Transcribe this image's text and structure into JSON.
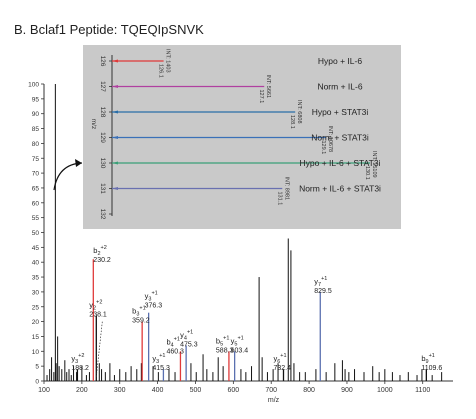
{
  "page_title": "B. Bclaf1 Peptide: TQEQIpSNVK",
  "chart_data": [
    {
      "type": "bar",
      "subtype": "mass-spectrum",
      "x_label": "m/z",
      "xlim": [
        100,
        1180
      ],
      "ylim": [
        0,
        100
      ],
      "x_ticks": [
        100,
        200,
        300,
        400,
        500,
        600,
        700,
        800,
        900,
        1000,
        1100
      ],
      "y_ticks": [
        0,
        5,
        10,
        15,
        20,
        25,
        30,
        35,
        40,
        45,
        50,
        55,
        60,
        65,
        70,
        75,
        80,
        85,
        90,
        95,
        100
      ],
      "colors": {
        "black": "#111111",
        "b_ion": "#e03a3a",
        "y_ion": "#5a70b0"
      },
      "annotated_peaks": [
        {
          "mz": 230.2,
          "intensity": 41,
          "color": "red",
          "ion": "b",
          "sub": "2",
          "sup": "+2",
          "label": "230.2"
        },
        {
          "mz": 238.1,
          "intensity": 22,
          "color": "black",
          "ion": "y",
          "sub": "2",
          "sup": "+2",
          "label": "238.1"
        },
        {
          "mz": 188.2,
          "intensity": 4,
          "color": "black",
          "ion": "y",
          "sub": "3",
          "sup": "+2",
          "label": "188.2"
        },
        {
          "mz": 359.2,
          "intensity": 20,
          "color": "red",
          "ion": "b",
          "sub": "3",
          "sup": "+1",
          "label": "359.2"
        },
        {
          "mz": 376.3,
          "intensity": 23,
          "color": "blue",
          "ion": "y",
          "sub": "3",
          "sup": "+1",
          "label": "376.3"
        },
        {
          "mz": 415.3,
          "intensity": 4,
          "color": "blue",
          "ion": "y",
          "sub": "3",
          "sup": "+1",
          "label": "415.3"
        },
        {
          "mz": 460.3,
          "intensity": 10,
          "color": "red",
          "ion": "b",
          "sub": "4",
          "sup": "+1",
          "label": "460.3"
        },
        {
          "mz": 475.3,
          "intensity": 12,
          "color": "blue",
          "ion": "y",
          "sub": "4",
          "sup": "+1",
          "label": "475.3"
        },
        {
          "mz": 588.3,
          "intensity": 10,
          "color": "red",
          "ion": "b",
          "sub": "5",
          "sup": "+1",
          "label": "588.3"
        },
        {
          "mz": 603.4,
          "intensity": 10,
          "color": "blue",
          "ion": "y",
          "sub": "5",
          "sup": "+1",
          "label": "603.4"
        },
        {
          "mz": 732.4,
          "intensity": 4,
          "color": "black",
          "ion": "y",
          "sub": "6",
          "sup": "+1",
          "label": "732.4"
        },
        {
          "mz": 829.5,
          "intensity": 30,
          "color": "blue",
          "ion": "y",
          "sub": "7",
          "sup": "+1",
          "label": "829.5"
        },
        {
          "mz": 1109.6,
          "intensity": 4,
          "color": "black",
          "ion": "b",
          "sub": "9",
          "sup": "+1",
          "label": "1109.6"
        }
      ],
      "other_peaks": [
        [
          108,
          2
        ],
        [
          115,
          4
        ],
        [
          120,
          8
        ],
        [
          126,
          3
        ],
        [
          130,
          100
        ],
        [
          132,
          6
        ],
        [
          136,
          15
        ],
        [
          140,
          5
        ],
        [
          147,
          4
        ],
        [
          155,
          7
        ],
        [
          160,
          3
        ],
        [
          166,
          4
        ],
        [
          172,
          2
        ],
        [
          178,
          5
        ],
        [
          186,
          3
        ],
        [
          200,
          5
        ],
        [
          212,
          2
        ],
        [
          220,
          3
        ],
        [
          246,
          6
        ],
        [
          252,
          4
        ],
        [
          262,
          3
        ],
        [
          274,
          6
        ],
        [
          286,
          2
        ],
        [
          300,
          4
        ],
        [
          316,
          3
        ],
        [
          330,
          5
        ],
        [
          345,
          4
        ],
        [
          357,
          6
        ],
        [
          388,
          5
        ],
        [
          402,
          3
        ],
        [
          430,
          4
        ],
        [
          446,
          3
        ],
        [
          488,
          6
        ],
        [
          502,
          3
        ],
        [
          520,
          9
        ],
        [
          530,
          4
        ],
        [
          546,
          3
        ],
        [
          560,
          8
        ],
        [
          573,
          5
        ],
        [
          620,
          4
        ],
        [
          633,
          3
        ],
        [
          648,
          5
        ],
        [
          668,
          35
        ],
        [
          676,
          8
        ],
        [
          690,
          3
        ],
        [
          705,
          4
        ],
        [
          718,
          6
        ],
        [
          745,
          48
        ],
        [
          752,
          44
        ],
        [
          760,
          6
        ],
        [
          775,
          3
        ],
        [
          790,
          3
        ],
        [
          818,
          4
        ],
        [
          845,
          3
        ],
        [
          868,
          6
        ],
        [
          888,
          7
        ],
        [
          895,
          4
        ],
        [
          905,
          3
        ],
        [
          920,
          4
        ],
        [
          945,
          3
        ],
        [
          968,
          5
        ],
        [
          985,
          3
        ],
        [
          1000,
          4
        ],
        [
          1020,
          3
        ],
        [
          1040,
          2
        ],
        [
          1062,
          3
        ],
        [
          1085,
          2
        ],
        [
          1098,
          4
        ],
        [
          1125,
          2
        ],
        [
          1150,
          3
        ]
      ]
    },
    {
      "type": "line",
      "subtype": "reporter-ion-inset",
      "x_label": "m/z",
      "ticks": [
        "126",
        "127",
        "128",
        "129",
        "130",
        "131",
        "132"
      ],
      "arrow_from": "main spectrum peak",
      "channels": [
        {
          "mz": 126,
          "condition": "Hypo + IL-6",
          "int_label": "INT: 1403",
          "mz_label": "126.1",
          "rel": 0.2,
          "color": "#e03a3a"
        },
        {
          "mz": 127,
          "condition": "Norm + IL-6",
          "int_label": "INT: 5661",
          "mz_label": "127.1",
          "rel": 0.59,
          "color": "#b040a0"
        },
        {
          "mz": 128,
          "condition": "Hypo + STAT3i",
          "int_label": "INT: 6808",
          "mz_label": "128.1",
          "rel": 0.71,
          "color": "#2a6ea8"
        },
        {
          "mz": 129,
          "condition": "Norm + STAT3i",
          "int_label": "INT: 10678",
          "mz_label": "129.1",
          "rel": 0.83,
          "color": "#3a70b8"
        },
        {
          "mz": 130,
          "condition": "Hypo + IL-6 + STAT3i",
          "int_label": "INT: 15109",
          "mz_label": "130.1",
          "rel": 1.0,
          "color": "#3aa078"
        },
        {
          "mz": 131,
          "condition": "Norm + IL-6 + STAT3i",
          "int_label": "INT: 8981",
          "mz_label": "131.1",
          "rel": 0.66,
          "color": "#6a70b0"
        }
      ]
    }
  ]
}
